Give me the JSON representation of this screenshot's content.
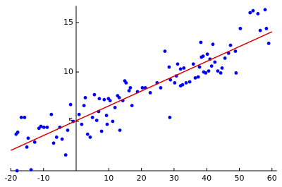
{
  "chart_data": {
    "type": "scatter",
    "x": [
      -18.4,
      -17.9,
      -16.8,
      -15.8,
      -15.1,
      -14.7,
      -13.8,
      -18.1,
      -12.7,
      -11.4,
      -10.8,
      -9.9,
      -8.9,
      -7.6,
      -6.9,
      -6.0,
      -5.0,
      -4.3,
      -3.2,
      -2.6,
      -1.7,
      -0.9,
      0.9,
      1.7,
      2.4,
      2.8,
      3.5,
      4.3,
      5.0,
      5.6,
      6.3,
      6.9,
      7.1,
      7.8,
      8.6,
      9.3,
      9.5,
      9.9,
      10.4,
      11.2,
      11.9,
      12.7,
      13.2,
      13.4,
      14.3,
      14.9,
      15.3,
      16.2,
      16.6,
      17.1,
      18.8,
      20.3,
      21.2,
      22.7,
      24.8,
      25.9,
      27.2,
      28.5,
      28.7,
      28.9,
      30.2,
      30.7,
      31.1,
      32.0,
      32.0,
      32.6,
      33.0,
      33.7,
      34.8,
      35.9,
      36.5,
      37.4,
      37.8,
      38.2,
      38.4,
      38.9,
      39.1,
      39.7,
      40.2,
      40.6,
      41.0,
      41.5,
      41.9,
      42.5,
      43.4,
      44.3,
      44.7,
      45.6,
      46.7,
      47.3,
      48.8,
      49.0,
      50.3,
      53.3,
      54.2,
      55.7,
      56.4,
      57.9,
      58.3,
      59.0
    ],
    "series": [
      {
        "color": "#0000ff",
        "values": [
          3.7,
          3.9,
          5.4,
          5.4,
          2.4,
          3.3,
          0.1,
          0.0,
          2.9,
          4.3,
          4.5,
          4.4,
          4.4,
          5.7,
          2.8,
          3.4,
          4.4,
          3.2,
          1.6,
          4.1,
          6.7,
          5.0,
          5.7,
          4.7,
          6.6,
          7.4,
          3.7,
          3.4,
          5.4,
          7.7,
          5.1,
          6.0,
          7.3,
          4.0,
          7.2,
          5.6,
          4.7,
          7.3,
          7.1,
          5.0,
          6.4,
          7.6,
          7.4,
          4.1,
          7.1,
          9.1,
          8.9,
          8.1,
          8.4,
          6.6,
          8.0,
          8.4,
          8.4,
          7.9,
          8.9,
          8.4,
          12.1,
          10.5,
          5.4,
          9.2,
          8.9,
          9.6,
          10.8,
          10.3,
          8.6,
          8.7,
          10.4,
          8.9,
          9.0,
          10.8,
          9.4,
          9.5,
          10.5,
          13.0,
          11.5,
          11.6,
          10.0,
          9.9,
          11.8,
          10.1,
          11.3,
          10.6,
          12.8,
          11.0,
          10.1,
          9.9,
          10.4,
          11.4,
          11.9,
          12.7,
          12.1,
          9.9,
          14.4,
          16.0,
          16.2,
          15.9,
          14.2,
          16.3,
          14.4,
          12.9
        ]
      }
    ],
    "fit_line": {
      "x": [
        -20,
        60
      ],
      "y": [
        2.07,
        14.07
      ],
      "color": "#dd0000"
    },
    "xlim": [
      -20.2,
      61.5
    ],
    "ylim": [
      0,
      16.7
    ],
    "xticks": [
      -20,
      -10,
      10,
      20,
      30,
      40,
      50,
      60
    ],
    "yticks": [
      5,
      10,
      15
    ]
  }
}
